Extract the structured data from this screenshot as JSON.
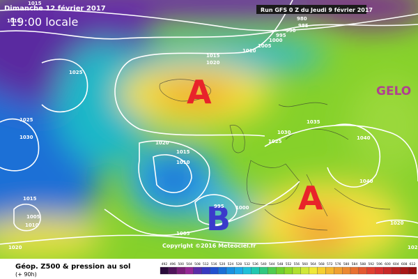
{
  "header": {
    "date": "Dimanche 12 février 2017",
    "time": "19:00 locale",
    "run": "Run GFS 0 Z du Jeudi 9 février 2017"
  },
  "map": {
    "highs": [
      "A",
      "A"
    ],
    "lows": [
      "B"
    ],
    "region_label": "GELO",
    "copyright": "Copyright ©2016 Meteociel.fr",
    "isobar_labels": [
      "1015",
      "1010",
      "980",
      "985",
      "990",
      "995",
      "1000",
      "1005",
      "1010",
      "1015",
      "1020",
      "1025",
      "1025",
      "1030",
      "1030",
      "1035",
      "1025",
      "1020",
      "1015",
      "1010",
      "1040",
      "1040",
      "1015",
      "1005",
      "1010",
      "995",
      "1000",
      "1005",
      "1020",
      "1020",
      "1020"
    ]
  },
  "legend": {
    "title": "Géop. Z500 & pression au sol",
    "lead": "(+ 90h)",
    "scale": [
      "492",
      "496",
      "500",
      "504",
      "508",
      "512",
      "516",
      "520",
      "524",
      "528",
      "532",
      "536",
      "540",
      "544",
      "548",
      "552",
      "556",
      "560",
      "564",
      "568",
      "572",
      "576",
      "580",
      "584",
      "588",
      "592",
      "596",
      "600",
      "604",
      "608",
      "612"
    ]
  }
}
